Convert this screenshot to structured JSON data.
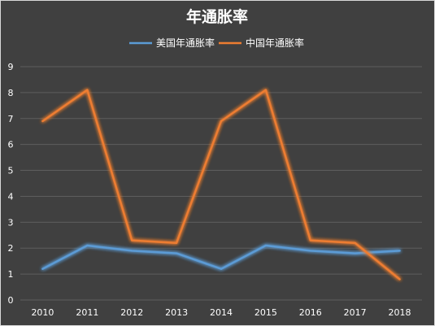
{
  "chart_data": {
    "type": "line",
    "title": "年通胀率",
    "categories": [
      "2010",
      "2011",
      "2012",
      "2013",
      "2014",
      "2015",
      "2016",
      "2017",
      "2018"
    ],
    "ylim": [
      0,
      9
    ],
    "yticks": [
      "0",
      "1",
      "2",
      "3",
      "4",
      "5",
      "6",
      "7",
      "8",
      "9"
    ],
    "grid": true,
    "legend_position": "top",
    "series": [
      {
        "name": "美国年通胀率",
        "color": "#5b9bd5",
        "values": [
          1.2,
          2.1,
          1.9,
          1.8,
          1.2,
          2.1,
          1.9,
          1.8,
          1.9
        ]
      },
      {
        "name": "中国年通胀率",
        "color": "#ed7d31",
        "values": [
          6.9,
          8.1,
          2.3,
          2.2,
          6.9,
          8.1,
          2.3,
          2.2,
          0.8
        ]
      }
    ],
    "background_color": "#404040",
    "text_color": "#ffffff",
    "gridline_color": "#5e5e5e"
  }
}
